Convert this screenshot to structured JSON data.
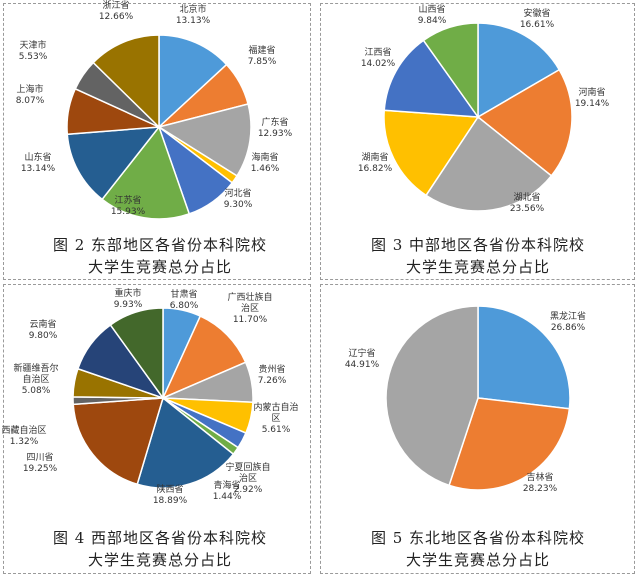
{
  "chart_data": [
    {
      "type": "pie",
      "caption_line1": "图 2  东部地区各省份本科院校",
      "caption_line2": "大学生竞赛总分占比",
      "slices": [
        {
          "name": "北京市",
          "value": 13.13,
          "label": "13.13%",
          "color": "#4e9ad9"
        },
        {
          "name": "福建省",
          "value": 7.85,
          "label": "7.85%",
          "color": "#ed7d31"
        },
        {
          "name": "广东省",
          "value": 12.93,
          "label": "12.93%",
          "color": "#a5a5a5"
        },
        {
          "name": "海南省",
          "value": 1.46,
          "label": "1.46%",
          "color": "#ffc000"
        },
        {
          "name": "河北省",
          "value": 9.3,
          "label": "9.30%",
          "color": "#4472c4"
        },
        {
          "name": "江苏省",
          "value": 15.93,
          "label": "15.93%",
          "color": "#70ad47"
        },
        {
          "name": "山东省",
          "value": 13.14,
          "label": "13.14%",
          "color": "#255e91"
        },
        {
          "name": "上海市",
          "value": 8.07,
          "label": "8.07%",
          "color": "#9e480e"
        },
        {
          "name": "天津市",
          "value": 5.53,
          "label": "5.53%",
          "color": "#636363"
        },
        {
          "name": "浙江省",
          "value": 12.66,
          "label": "12.66%",
          "color": "#997300"
        }
      ]
    },
    {
      "type": "pie",
      "caption_line1": "图 3  中部地区各省份本科院校",
      "caption_line2": "大学生竞赛总分占比",
      "slices": [
        {
          "name": "安徽省",
          "value": 16.61,
          "label": "16.61%",
          "color": "#4e9ad9"
        },
        {
          "name": "河南省",
          "value": 19.14,
          "label": "19.14%",
          "color": "#ed7d31"
        },
        {
          "name": "湖北省",
          "value": 23.56,
          "label": "23.56%",
          "color": "#a5a5a5"
        },
        {
          "name": "湖南省",
          "value": 16.82,
          "label": "16.82%",
          "color": "#ffc000"
        },
        {
          "name": "江西省",
          "value": 14.02,
          "label": "14.02%",
          "color": "#4472c4"
        },
        {
          "name": "山西省",
          "value": 9.84,
          "label": "9.84%",
          "color": "#70ad47"
        }
      ]
    },
    {
      "type": "pie",
      "caption_line1": "图 4  西部地区各省份本科院校",
      "caption_line2": "大学生竞赛总分占比",
      "slices": [
        {
          "name": "甘肃省",
          "value": 6.8,
          "label": "6.80%",
          "color": "#4e9ad9"
        },
        {
          "name": "广西壮族自治区",
          "value": 11.7,
          "label": "11.70%",
          "color": "#ed7d31"
        },
        {
          "name": "贵州省",
          "value": 7.26,
          "label": "7.26%",
          "color": "#a5a5a5"
        },
        {
          "name": "内蒙古自治区",
          "value": 5.61,
          "label": "5.61%",
          "color": "#ffc000"
        },
        {
          "name": "宁夏回族自治区",
          "value": 2.92,
          "label": "2.92%",
          "color": "#4472c4"
        },
        {
          "name": "青海省",
          "value": 1.44,
          "label": "1.44%",
          "color": "#70ad47"
        },
        {
          "name": "陕西省",
          "value": 18.89,
          "label": "18.89%",
          "color": "#255e91"
        },
        {
          "name": "四川省",
          "value": 19.25,
          "label": "19.25%",
          "color": "#9e480e"
        },
        {
          "name": "西藏自治区",
          "value": 1.32,
          "label": "1.32%",
          "color": "#636363"
        },
        {
          "name": "新疆维吾尔自治区",
          "value": 5.08,
          "label": "5.08%",
          "color": "#997300"
        },
        {
          "name": "云南省",
          "value": 9.8,
          "label": "9.80%",
          "color": "#264478"
        },
        {
          "name": "重庆市",
          "value": 9.93,
          "label": "9.93%",
          "color": "#43682b"
        }
      ]
    },
    {
      "type": "pie",
      "caption_line1": "图 5  东北地区各省份本科院校",
      "caption_line2": "大学生竞赛总分占比",
      "slices": [
        {
          "name": "黑龙江省",
          "value": 26.86,
          "label": "26.86%",
          "color": "#4e9ad9"
        },
        {
          "name": "吉林省",
          "value": 28.23,
          "label": "28.23%",
          "color": "#ed7d31"
        },
        {
          "name": "辽宁省",
          "value": 44.91,
          "label": "44.91%",
          "color": "#a5a5a5"
        }
      ]
    }
  ]
}
